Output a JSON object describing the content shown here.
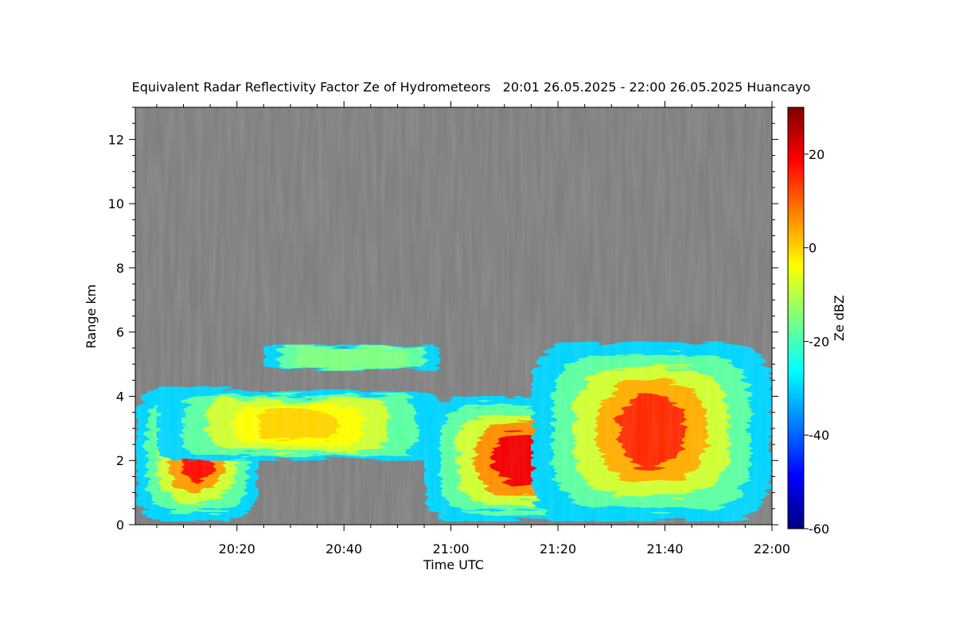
{
  "chart_data": {
    "type": "heatmap",
    "title": "Equivalent Radar Reflectivity Factor Ze of Hydrometeors   20:01 26.05.2025 - 22:00 26.05.2025 Huancayo",
    "xlabel": "Time UTC",
    "ylabel": "Range km",
    "x_range": [
      "20:01",
      "22:00"
    ],
    "x_ticks": [
      "20:20",
      "20:40",
      "21:00",
      "21:20",
      "21:40",
      "22:00"
    ],
    "y_range": [
      0,
      13
    ],
    "y_ticks": [
      "0",
      "2",
      "4",
      "6",
      "8",
      "10",
      "12"
    ],
    "background_color": "#808080",
    "colorbar": {
      "label": "Ze dBZ",
      "range": [
        -60,
        30
      ],
      "ticks": [
        "20",
        "0",
        "-20",
        "-40",
        "-60"
      ],
      "colormap": [
        "#00007f",
        "#0000ff",
        "#007fff",
        "#00ffff",
        "#7fff7f",
        "#ffff00",
        "#ff7f00",
        "#ff0000",
        "#7f0000"
      ]
    },
    "echo_regions": [
      {
        "from": "20:01",
        "to": "20:24",
        "base_km": 0.1,
        "top_km": 4.3,
        "peak_ze_dbz": 18
      },
      {
        "from": "20:05",
        "to": "20:58",
        "base_km": 2.0,
        "top_km": 4.2,
        "peak_ze_dbz": 0
      },
      {
        "from": "20:25",
        "to": "20:58",
        "base_km": 4.8,
        "top_km": 5.6,
        "peak_ze_dbz": -15
      },
      {
        "from": "20:55",
        "to": "21:30",
        "base_km": 0.1,
        "top_km": 4.0,
        "peak_ze_dbz": 20
      },
      {
        "from": "21:15",
        "to": "22:00",
        "base_km": 0.1,
        "top_km": 5.7,
        "peak_ze_dbz": 15
      }
    ]
  }
}
